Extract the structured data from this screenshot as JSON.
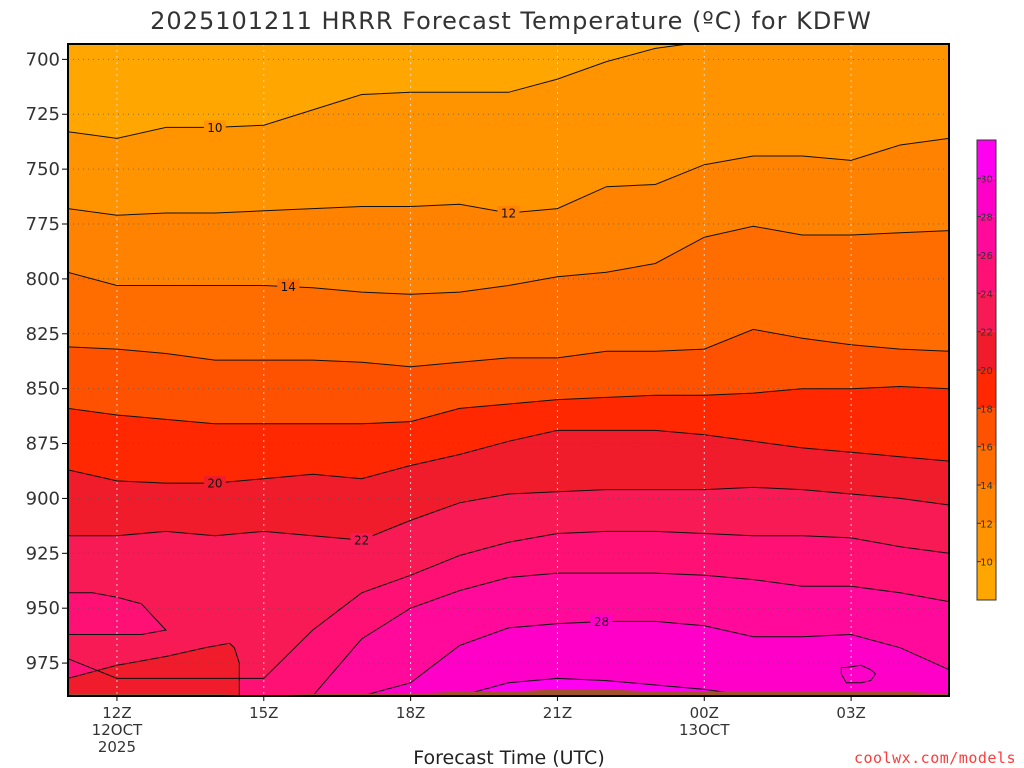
{
  "chart_data": {
    "type": "heatmap",
    "title": "2025101211 HRRR Forecast Temperature (ºC) for KDFW",
    "xlabel": "Forecast Time (UTC)",
    "ylabel": "",
    "credit": "coolwx.com/models",
    "y_ticks": [
      "700",
      "725",
      "750",
      "775",
      "800",
      "825",
      "850",
      "875",
      "900",
      "925",
      "950",
      "975"
    ],
    "ylim": [
      990,
      693
    ],
    "x_ticks": [
      {
        "hour": 0,
        "lines": [
          "12Z",
          "12OCT",
          "2025"
        ]
      },
      {
        "hour": 3,
        "lines": [
          "15Z"
        ]
      },
      {
        "hour": 6,
        "lines": [
          "18Z"
        ]
      },
      {
        "hour": 9,
        "lines": [
          "21Z"
        ]
      },
      {
        "hour": 12,
        "lines": [
          "00Z",
          "13OCT"
        ]
      },
      {
        "hour": 15,
        "lines": [
          "03Z"
        ]
      }
    ],
    "xlim": [
      -1,
      17
    ],
    "grid": true,
    "colorbar": {
      "labels": [
        "10",
        "12",
        "14",
        "16",
        "18",
        "20",
        "22",
        "24",
        "26",
        "28",
        "30"
      ],
      "levels": [
        8,
        10,
        12,
        14,
        16,
        18,
        20,
        22,
        24,
        26,
        28,
        30,
        32
      ],
      "colors": [
        "#ffa600",
        "#ff9400",
        "#ff8200",
        "#ff6c00",
        "#ff5200",
        "#ff2800",
        "#f01c2c",
        "#f71a55",
        "#ff1075",
        "#ff0a9a",
        "#ff00c8",
        "#ff00f0"
      ]
    },
    "hours": [
      -1,
      0,
      1,
      2,
      3,
      4,
      5,
      6,
      7,
      8,
      9,
      10,
      11,
      12,
      13,
      14,
      15,
      16,
      17
    ],
    "isotherms": [
      {
        "level": 10,
        "label": "10",
        "label_hour": 2,
        "pressure": [
          733,
          736,
          731,
          731,
          730,
          723,
          716,
          715,
          715,
          715,
          709,
          701,
          695,
          692,
          691,
          692,
          693,
          693,
          693
        ]
      },
      {
        "level": 12,
        "label": "12",
        "label_hour": 8,
        "pressure": [
          768,
          771,
          770,
          770,
          769,
          768,
          767,
          767,
          766,
          770,
          768,
          758,
          757,
          748,
          744,
          744,
          746,
          739,
          736
        ]
      },
      {
        "level": 14,
        "label": "14",
        "label_hour": 3.5,
        "pressure": [
          797,
          803,
          803,
          803,
          803,
          804,
          806,
          807,
          806,
          803,
          799,
          797,
          793,
          781,
          776,
          780,
          780,
          779,
          778
        ]
      },
      {
        "level": 16,
        "label": "",
        "label_hour": 0,
        "pressure": [
          831,
          832,
          834,
          837,
          837,
          837,
          838,
          840,
          838,
          836,
          836,
          833,
          833,
          832,
          823,
          827,
          830,
          832,
          833
        ]
      },
      {
        "level": 18,
        "label": "",
        "label_hour": 0,
        "pressure": [
          859,
          862,
          864,
          866,
          866,
          866,
          866,
          865,
          859,
          857,
          855,
          854,
          853,
          853,
          852,
          850,
          850,
          849,
          850
        ]
      },
      {
        "level": 20,
        "label": "20",
        "label_hour": 2,
        "pressure": [
          887,
          892,
          893,
          893,
          891,
          889,
          891,
          885,
          880,
          874,
          869,
          869,
          869,
          871,
          874,
          877,
          879,
          881,
          883
        ]
      },
      {
        "level": 22,
        "label": "22",
        "label_hour": 5,
        "pressure": [
          917,
          917,
          915,
          917,
          915,
          917,
          919,
          910,
          902,
          898,
          897,
          896,
          896,
          896,
          895,
          896,
          898,
          900,
          903
        ]
      },
      {
        "level": 24,
        "label": "",
        "label_hour": 0,
        "pressure": [
          973,
          982,
          982,
          982,
          982,
          960,
          943,
          935,
          926,
          920,
          916,
          915,
          915,
          916,
          917,
          917,
          918,
          922,
          925
        ]
      },
      {
        "level": 26,
        "label": "",
        "label_hour": 0,
        "pressure": [
          990,
          990,
          990,
          990,
          990,
          990,
          964,
          950,
          942,
          936,
          934,
          934,
          934,
          935,
          937,
          940,
          940,
          943,
          947
        ]
      },
      {
        "level": 28,
        "label": "28",
        "label_hour": 9.9,
        "pressure": [
          990,
          990,
          990,
          990,
          990,
          990,
          990,
          984,
          967,
          959,
          957,
          956,
          956,
          958,
          963,
          963,
          962,
          968,
          978
        ]
      },
      {
        "level": 30,
        "label": "",
        "label_hour": 0,
        "pressure": [
          990,
          990,
          990,
          990,
          990,
          990,
          990,
          990,
          990,
          984,
          982,
          983,
          985,
          987,
          990,
          990,
          990,
          990,
          990
        ]
      }
    ],
    "bubbles": [
      {
        "hour": 0,
        "top": [
          943,
          943,
          945,
          948,
          960
        ],
        "bottom": [
          962,
          962,
          962,
          962,
          960
        ],
        "hours": [
          -1,
          -0.5,
          0,
          0.5,
          1.0
        ],
        "fill_level": 24
      },
      {
        "hour": 0,
        "top": [
          982,
          976,
          972,
          968,
          966,
          968,
          975
        ],
        "bottom": [
          990,
          990,
          990,
          990,
          990,
          990,
          990
        ],
        "hours": [
          -1,
          0,
          1,
          1.8,
          2.3,
          2.4,
          2.5
        ],
        "fill_level": 20
      },
      {
        "hour": 15,
        "top": [
          977,
          977,
          976,
          978,
          980
        ],
        "bottom": [
          980,
          984,
          984,
          983,
          980
        ],
        "hours": [
          14.8,
          14.9,
          15.2,
          15.4,
          15.5
        ],
        "fill_level": 28
      }
    ],
    "terrain_color": "#a0522d",
    "surface_pressure": [
      989,
      989,
      989,
      989,
      990,
      989,
      989,
      989,
      988,
      988,
      987,
      987,
      988,
      988,
      988,
      988,
      988,
      988,
      989
    ]
  }
}
